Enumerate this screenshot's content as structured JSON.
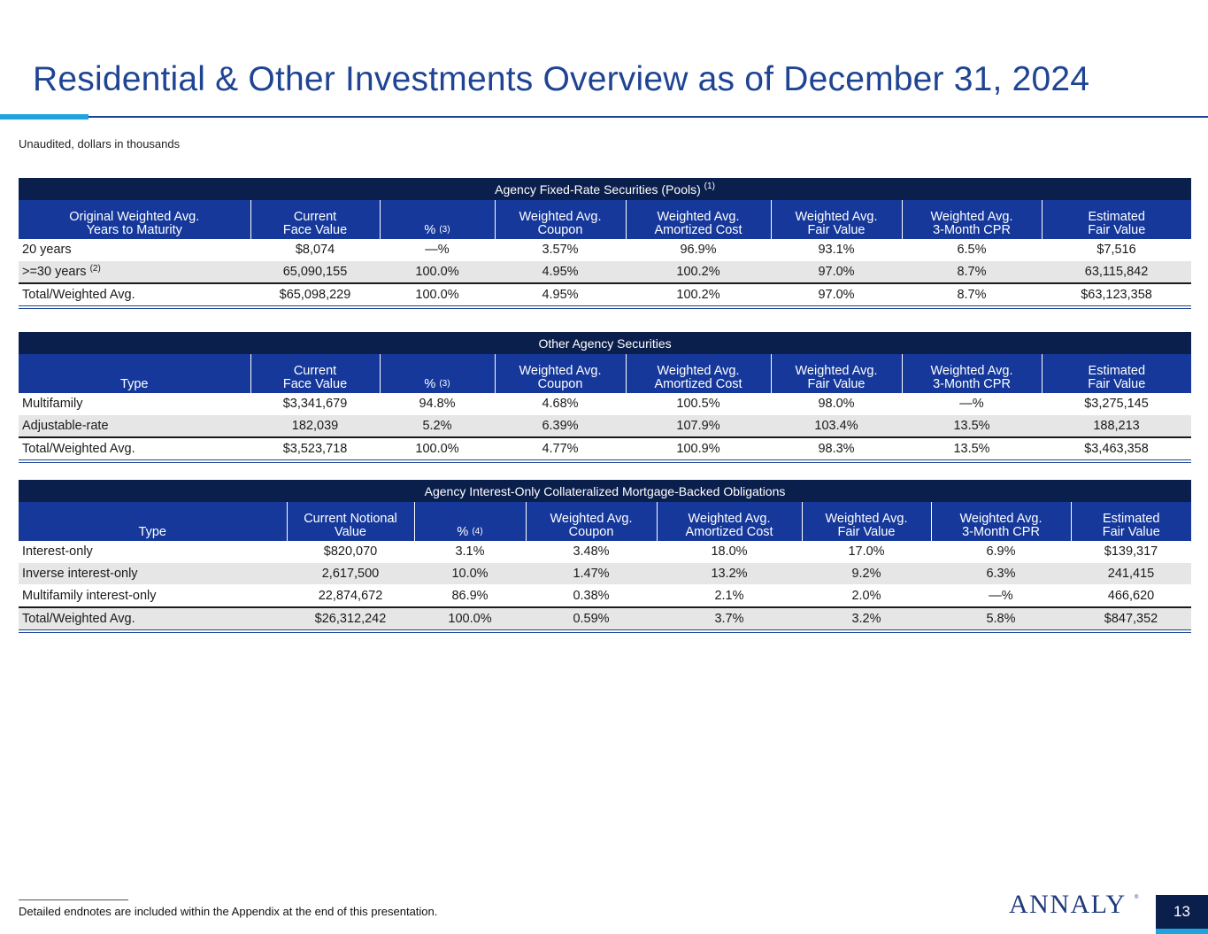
{
  "page": {
    "title": "Residential & Other Investments Overview as of December 31, 2024",
    "subtitle": "Unaudited, dollars in thousands",
    "footnote": "Detailed endnotes are included within the Appendix at the end of this presentation.",
    "logo_text": "ANNALY",
    "logo_mark": "®",
    "page_number": "13"
  },
  "tables": [
    {
      "title": "Agency Fixed-Rate Securities (Pools)",
      "title_note": "(1)",
      "columns": [
        {
          "label": "Original Weighted Avg.\nYears to Maturity"
        },
        {
          "label": "Current\nFace Value"
        },
        {
          "label": "%",
          "note": "(3)"
        },
        {
          "label": "Weighted Avg.\nCoupon"
        },
        {
          "label": "Weighted Avg.\nAmortized Cost"
        },
        {
          "label": "Weighted Avg.\nFair Value"
        },
        {
          "label": "Weighted Avg.\n3-Month CPR"
        },
        {
          "label": "Estimated\nFair Value"
        }
      ],
      "rows": [
        {
          "label": "20 years",
          "values": [
            "$8,074",
            "—%",
            "3.57%",
            "96.9%",
            "93.1%",
            "6.5%",
            "$7,516"
          ]
        },
        {
          "label": ">=30 years",
          "note": "(2)",
          "values": [
            "65,090,155",
            "100.0%",
            "4.95%",
            "100.2%",
            "97.0%",
            "8.7%",
            "63,115,842"
          ]
        }
      ],
      "total": {
        "label": "Total/Weighted Avg.",
        "values": [
          "$65,098,229",
          "100.0%",
          "4.95%",
          "100.2%",
          "97.0%",
          "8.7%",
          "$63,123,358"
        ]
      }
    },
    {
      "title": "Other Agency Securities",
      "title_note": "",
      "columns": [
        {
          "label": "Type"
        },
        {
          "label": "Current\nFace Value"
        },
        {
          "label": "%",
          "note": "(3)"
        },
        {
          "label": "Weighted Avg.\nCoupon"
        },
        {
          "label": "Weighted Avg.\nAmortized Cost"
        },
        {
          "label": "Weighted Avg.\nFair Value"
        },
        {
          "label": "Weighted Avg.\n3-Month CPR"
        },
        {
          "label": "Estimated\nFair Value"
        }
      ],
      "rows": [
        {
          "label": "Multifamily",
          "values": [
            "$3,341,679",
            "94.8%",
            "4.68%",
            "100.5%",
            "98.0%",
            "—%",
            "$3,275,145"
          ]
        },
        {
          "label": "Adjustable-rate",
          "values": [
            "182,039",
            "5.2%",
            "6.39%",
            "107.9%",
            "103.4%",
            "13.5%",
            "188,213"
          ]
        }
      ],
      "total": {
        "label": "Total/Weighted Avg.",
        "values": [
          "$3,523,718",
          "100.0%",
          "4.77%",
          "100.9%",
          "98.3%",
          "13.5%",
          "$3,463,358"
        ]
      }
    },
    {
      "title": "Agency Interest-Only Collateralized Mortgage-Backed Obligations",
      "title_note": "",
      "columns": [
        {
          "label": "Type"
        },
        {
          "label": "Current Notional\nValue"
        },
        {
          "label": "%",
          "note": "(4)"
        },
        {
          "label": "Weighted Avg.\nCoupon"
        },
        {
          "label": "Weighted Avg.\nAmortized Cost"
        },
        {
          "label": "Weighted Avg.\nFair Value"
        },
        {
          "label": "Weighted Avg.\n3-Month CPR"
        },
        {
          "label": "Estimated\nFair Value"
        }
      ],
      "rows": [
        {
          "label": "Interest-only",
          "values": [
            "$820,070",
            "3.1%",
            "3.48%",
            "18.0%",
            "17.0%",
            "6.9%",
            "$139,317"
          ]
        },
        {
          "label": "Inverse interest-only",
          "values": [
            "2,617,500",
            "10.0%",
            "1.47%",
            "13.2%",
            "9.2%",
            "6.3%",
            "241,415"
          ]
        },
        {
          "label": "Multifamily interest-only",
          "values": [
            "22,874,672",
            "86.9%",
            "0.38%",
            "2.1%",
            "2.0%",
            "—%",
            "466,620"
          ]
        }
      ],
      "total": {
        "label": "Total/Weighted Avg.",
        "values": [
          "$26,312,242",
          "100.0%",
          "0.59%",
          "3.7%",
          "3.2%",
          "5.8%",
          "$847,352"
        ]
      }
    }
  ]
}
